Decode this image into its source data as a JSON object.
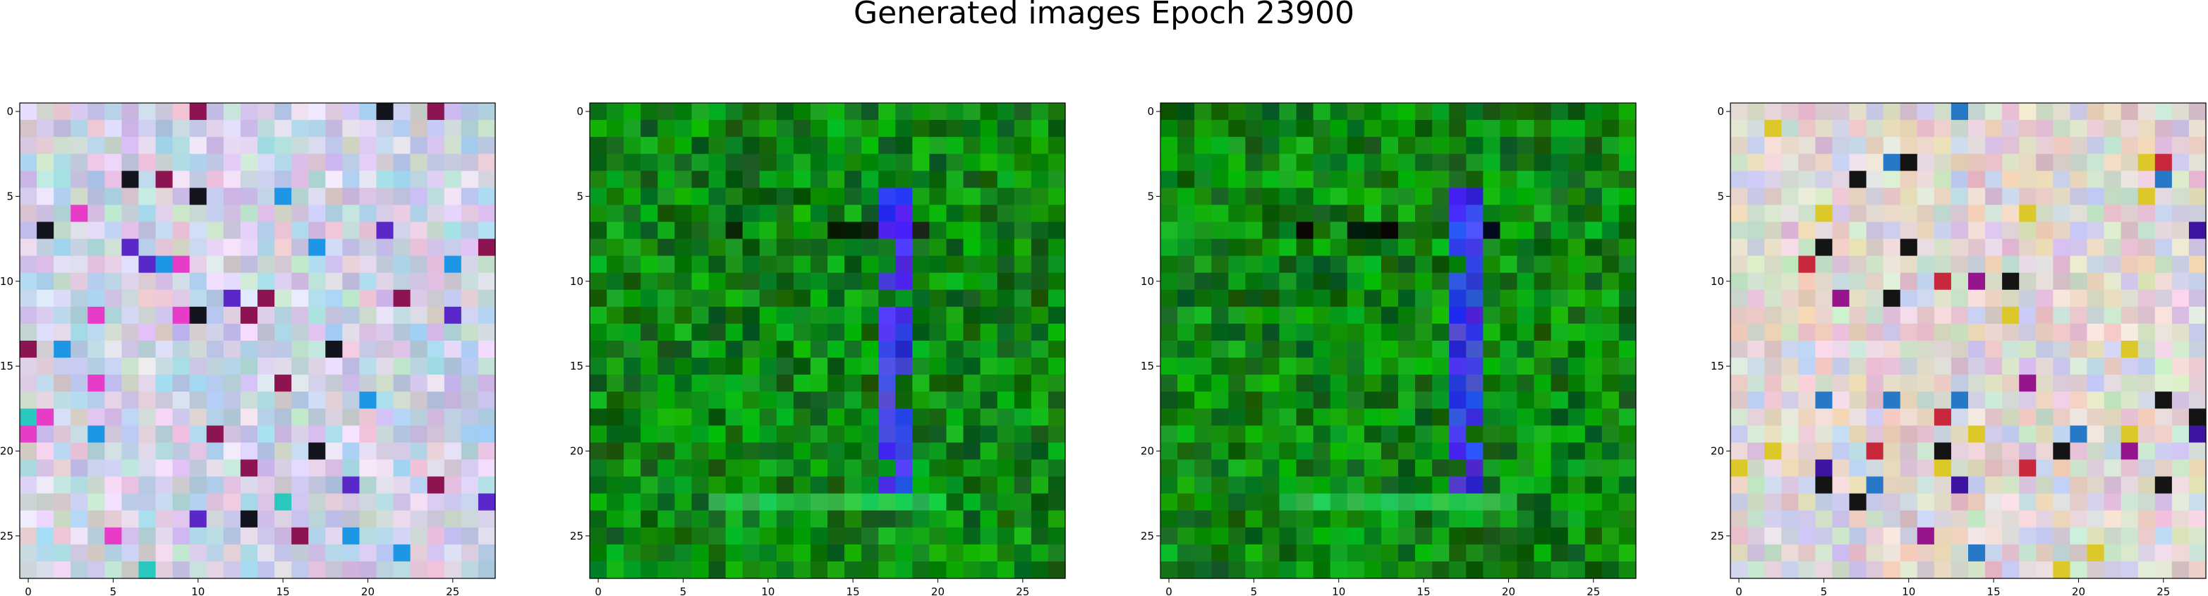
{
  "figure": {
    "title": "Generated images Epoch 23900"
  },
  "panels": [
    {
      "name": "image-1",
      "palette": "pastel-cool",
      "x_ticks": [
        "0",
        "5",
        "10",
        "15",
        "20",
        "25"
      ],
      "y_ticks": [
        "0",
        "5",
        "10",
        "15",
        "20",
        "25"
      ]
    },
    {
      "name": "image-2",
      "palette": "green-blue",
      "x_ticks": [
        "0",
        "5",
        "10",
        "15",
        "20",
        "25"
      ],
      "y_ticks": [
        "0",
        "5",
        "10",
        "15",
        "20",
        "25"
      ]
    },
    {
      "name": "image-3",
      "palette": "green-blue",
      "x_ticks": [
        "0",
        "5",
        "10",
        "15",
        "20",
        "25"
      ],
      "y_ticks": [
        "0",
        "5",
        "10",
        "15",
        "20",
        "25"
      ]
    },
    {
      "name": "image-4",
      "palette": "pastel-warm",
      "x_ticks": [
        "0",
        "5",
        "10",
        "15",
        "20",
        "25"
      ],
      "y_ticks": [
        "0",
        "5",
        "10",
        "15",
        "20",
        "25"
      ]
    }
  ],
  "grid_size": 28
}
